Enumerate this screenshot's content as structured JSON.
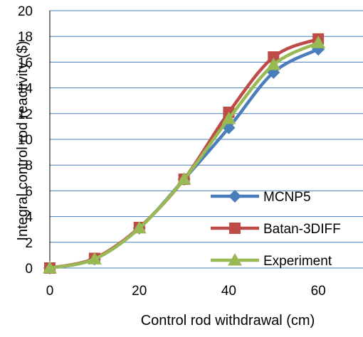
{
  "chart_data": {
    "type": "line",
    "title": "",
    "xlabel": "Control rod withdrawal (cm)",
    "ylabel": "Integral control rod reactivity ($)",
    "x": [
      0,
      10,
      20,
      30,
      40,
      50,
      60
    ],
    "xlim": [
      0,
      70
    ],
    "ylim": [
      0,
      20
    ],
    "x_ticks": [
      "0",
      "20",
      "40",
      "60"
    ],
    "y_ticks": [
      "0",
      "2",
      "4",
      "6",
      "8",
      "10",
      "12",
      "14",
      "16",
      "18",
      "20"
    ],
    "grid": "horizontal",
    "legend_position": "bottom-right (inside)",
    "series": [
      {
        "name": "MCNP5",
        "color": "#4a7ebb",
        "marker": "diamond",
        "values": [
          0,
          0.7,
          3.1,
          6.9,
          10.9,
          15.2,
          17.0
        ]
      },
      {
        "name": "Batan-3DIFF",
        "color": "#be4b48",
        "marker": "square",
        "values": [
          0,
          0.75,
          3.15,
          6.9,
          12.1,
          16.4,
          17.8
        ]
      },
      {
        "name": "Experiment",
        "color": "#98b954",
        "marker": "triangle",
        "values": [
          0,
          0.7,
          3.1,
          6.9,
          11.6,
          15.8,
          17.5
        ]
      }
    ]
  }
}
